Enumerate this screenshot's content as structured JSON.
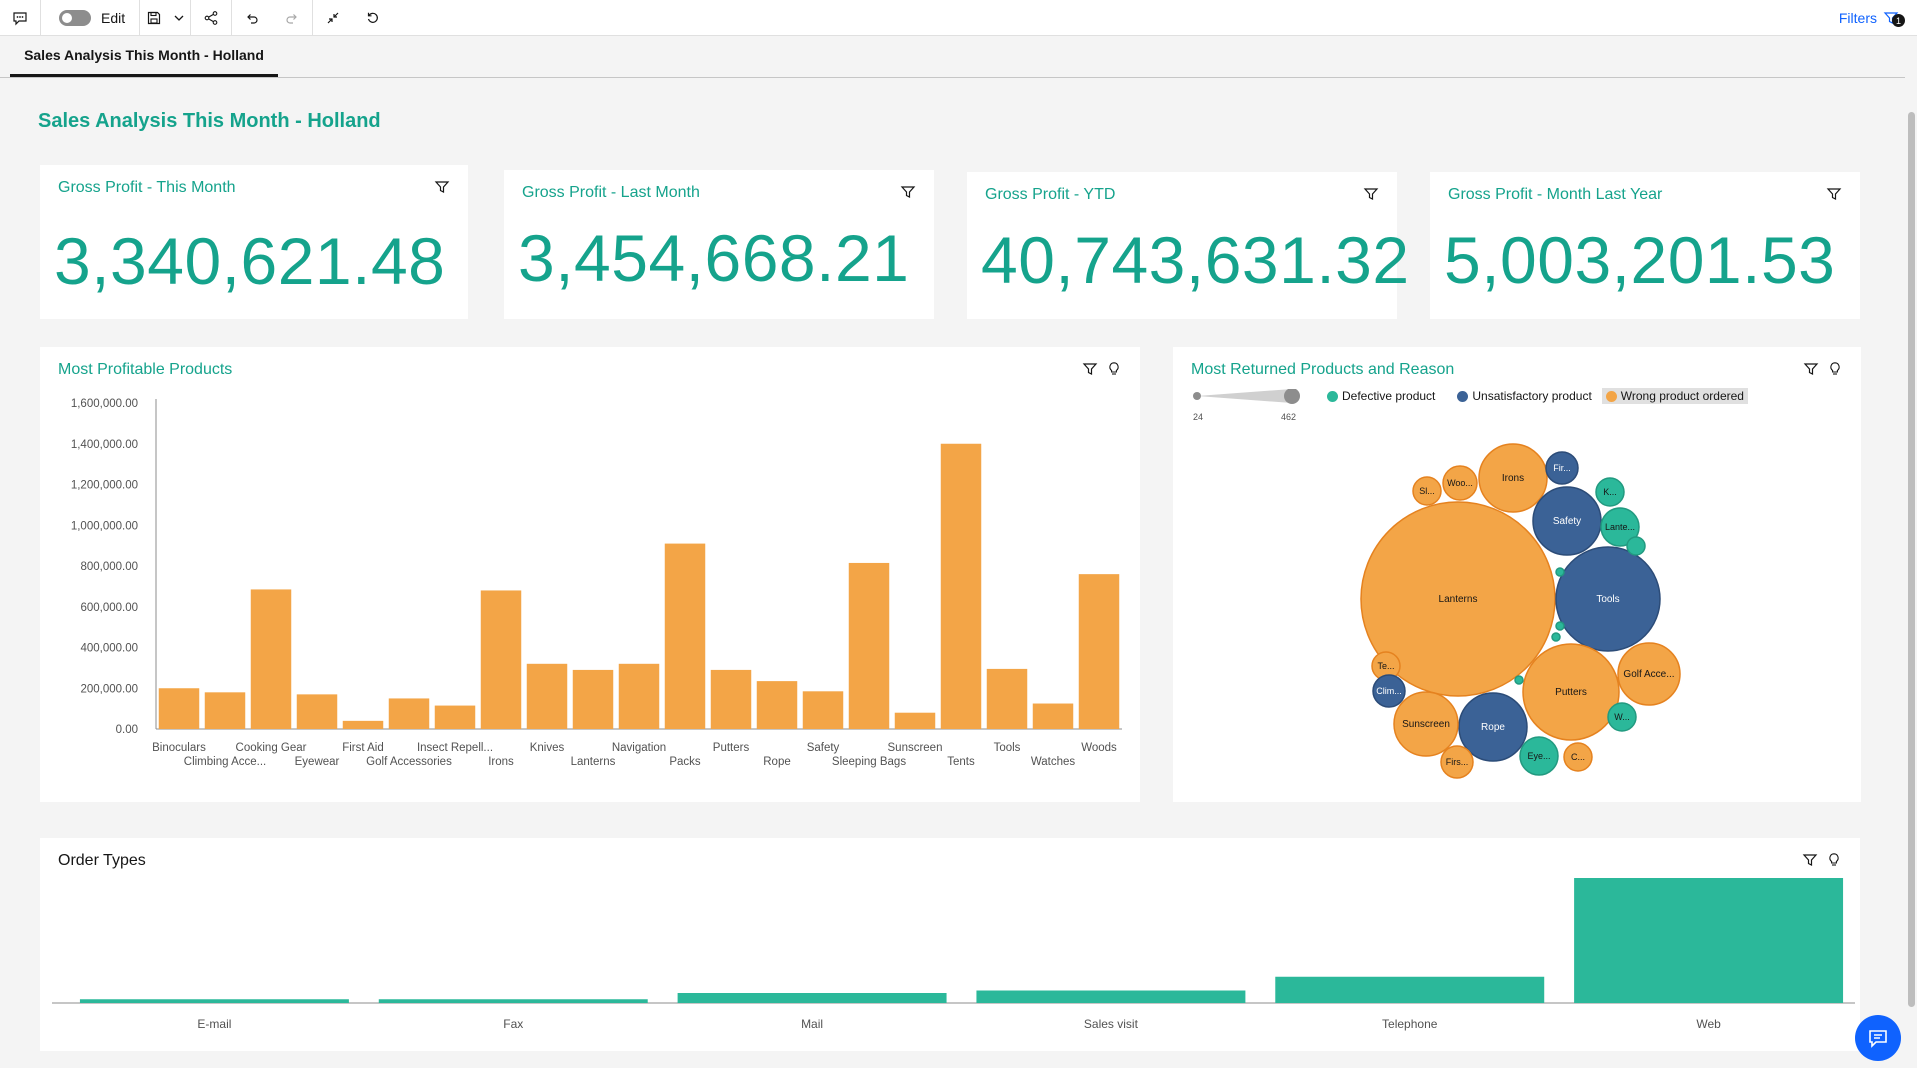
{
  "toolbar": {
    "edit_label": "Edit",
    "filters_label": "Filters",
    "filters_badge": "1"
  },
  "tab": {
    "label": "Sales Analysis This Month - Holland"
  },
  "dashboard": {
    "title": "Sales Analysis This Month - Holland"
  },
  "kpis": [
    {
      "title": "Gross Profit - This Month",
      "value": "3,340,621.48"
    },
    {
      "title": "Gross Profit - Last Month",
      "value": "3,454,668.21"
    },
    {
      "title": "Gross Profit - YTD",
      "value": "40,743,631.32"
    },
    {
      "title": "Gross Profit - Month Last Year",
      "value": "5,003,201.53"
    }
  ],
  "profitable": {
    "title": "Most Profitable Products"
  },
  "returned": {
    "title": "Most Returned Products and Reason",
    "slider_min": "24",
    "slider_max": "462",
    "legend": [
      {
        "label": "Defective product",
        "color": "#2bb89a"
      },
      {
        "label": "Unsatisfactory product",
        "color": "#3b6296"
      },
      {
        "label": "Wrong product ordered",
        "color": "#f3a547"
      }
    ]
  },
  "orders": {
    "title": "Order Types"
  },
  "chart_data": [
    {
      "type": "bar",
      "title": "Most Profitable Products",
      "categories": [
        "Binoculars",
        "Climbing Acce...",
        "Cooking Gear",
        "Eyewear",
        "First Aid",
        "Golf Accessories",
        "Insect Repell...",
        "Irons",
        "Knives",
        "Lanterns",
        "Navigation",
        "Packs",
        "Putters",
        "Rope",
        "Safety",
        "Sleeping Bags",
        "Sunscreen",
        "Tents",
        "Tools",
        "Watches",
        "Woods"
      ],
      "values": [
        200000,
        180000,
        685000,
        170000,
        40000,
        150000,
        115000,
        680000,
        320000,
        290000,
        320000,
        910000,
        290000,
        235000,
        185000,
        815000,
        80000,
        1400000,
        295000,
        125000,
        760000
      ],
      "ylim": [
        0,
        1600000
      ],
      "yticks": [
        "0.00",
        "200,000.00",
        "400,000.00",
        "600,000.00",
        "800,000.00",
        "1,000,000.00",
        "1,200,000.00",
        "1,400,000.00",
        "1,600,000.00"
      ],
      "color": "#f3a547",
      "grid": false
    },
    {
      "type": "bubble",
      "title": "Most Returned Products and Reason",
      "series": [
        {
          "name": "Wrong product ordered",
          "labels": [
            "Lanterns",
            "Putters",
            "Irons",
            "Sunscreen",
            "Golf Acce...",
            "Woo...",
            "Sl...",
            "Te...",
            "Firs...",
            "C..."
          ]
        },
        {
          "name": "Unsatisfactory product",
          "labels": [
            "Tools",
            "Safety",
            "Rope",
            "Fir...",
            "Clim..."
          ]
        },
        {
          "name": "Defective product",
          "labels": [
            "Lante...",
            "K...",
            "W...",
            "Eye..."
          ]
        }
      ],
      "size_range": [
        24,
        462
      ]
    },
    {
      "type": "bar",
      "title": "Order Types",
      "categories": [
        "E-mail",
        "Fax",
        "Mail",
        "Sales visit",
        "Telephone",
        "Web"
      ],
      "values": [
        3,
        3,
        8,
        10,
        21,
        100
      ],
      "color": "#2bb89a"
    }
  ]
}
